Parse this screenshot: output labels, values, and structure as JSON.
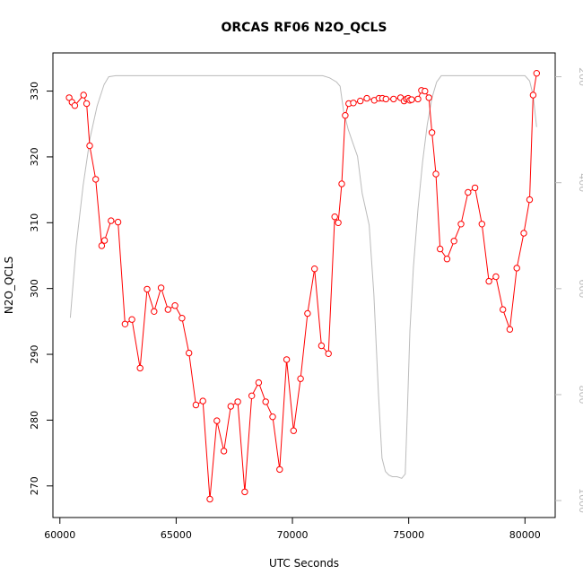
{
  "chart_data": {
    "type": "line",
    "title": "ORCAS RF06 N2O_QCLS",
    "xlabel": "UTC Seconds",
    "ylabel": "N2O_QCLS",
    "xlim": [
      59700,
      81300
    ],
    "ylim": [
      265.2,
      335.8
    ],
    "y2lim": [
      1032,
      155
    ],
    "x_ticks": [
      60000,
      65000,
      70000,
      75000,
      80000
    ],
    "x_tick_labels": [
      "60000",
      "65000",
      "70000",
      "75000",
      "80000"
    ],
    "y_ticks": [
      270,
      280,
      290,
      300,
      310,
      320,
      330
    ],
    "y_tick_labels": [
      "270",
      "280",
      "290",
      "300",
      "310",
      "320",
      "330"
    ],
    "y2_ticks": [
      200,
      400,
      600,
      800,
      1000
    ],
    "y2_tick_labels": [
      "200",
      "400",
      "600",
      "800",
      "1000"
    ],
    "grid": false,
    "legend": "none",
    "colors": {
      "n2o": "#ff0000",
      "pressure": "#bbbbbb",
      "axis": "#000000"
    },
    "series": [
      {
        "role": "n2o",
        "x": [
          60400,
          60520,
          60640,
          61020,
          61150,
          61280,
          61540,
          61800,
          61920,
          62200,
          62500,
          62800,
          63100,
          63450,
          63750,
          64050,
          64350,
          64650,
          64950,
          65250,
          65550,
          65850,
          66150,
          66450,
          66750,
          67050,
          67350,
          67650,
          67950,
          68250,
          68550,
          68850,
          69150,
          69450,
          69750,
          70050,
          70350,
          70650,
          70950,
          71250,
          71550,
          71820,
          71970,
          72120,
          72270,
          72420,
          72620,
          72920,
          73200,
          73520,
          73720,
          73870,
          74020,
          74350,
          74650,
          74800,
          74900,
          74980,
          75050,
          75130,
          75400,
          75550,
          75700,
          75870,
          76000,
          76170,
          76350,
          76650,
          76950,
          77250,
          77550,
          77850,
          78150,
          78450,
          78750,
          79050,
          79350,
          79650,
          79950,
          80200,
          80350,
          80500
        ],
        "y": [
          329.0,
          328.3,
          327.8,
          329.4,
          328.1,
          321.7,
          316.6,
          306.5,
          307.3,
          310.3,
          310.1,
          294.6,
          295.3,
          287.9,
          299.9,
          296.5,
          300.1,
          296.8,
          297.4,
          295.5,
          290.2,
          282.3,
          282.9,
          268.0,
          279.9,
          275.3,
          282.1,
          282.8,
          269.1,
          283.7,
          285.7,
          282.8,
          280.5,
          272.5,
          289.2,
          278.4,
          286.3,
          296.2,
          303.0,
          291.3,
          290.1,
          310.9,
          310.0,
          315.9,
          326.3,
          328.1,
          328.2,
          328.5,
          328.9,
          328.6,
          328.9,
          328.9,
          328.8,
          328.8,
          329.0,
          328.5,
          328.8,
          328.9,
          328.6,
          328.7,
          328.8,
          330.1,
          330.0,
          329.0,
          323.7,
          317.4,
          306.0,
          304.5,
          307.2,
          309.8,
          314.6,
          315.3,
          309.8,
          301.1,
          301.8,
          296.8,
          293.8,
          303.1,
          308.4,
          313.5,
          329.4,
          332.7
        ]
      },
      {
        "role": "pressure",
        "x": [
          60450,
          60700,
          61000,
          61300,
          61600,
          61900,
          62100,
          62400,
          63000,
          65000,
          67000,
          69000,
          70500,
          71000,
          71300,
          71600,
          71900,
          72050,
          72200,
          72400,
          72600,
          72800,
          73000,
          73300,
          73500,
          73700,
          73850,
          74000,
          74150,
          74300,
          74500,
          74700,
          74850,
          74950,
          75050,
          75200,
          75400,
          75600,
          75800,
          76000,
          76200,
          76400,
          76600,
          77000,
          78000,
          79000,
          79800,
          80000,
          80200,
          80350,
          80500
        ],
        "y": [
          655,
          520,
          405,
          315,
          255,
          215,
          200,
          198,
          198,
          198,
          198,
          198,
          198,
          198,
          198,
          202,
          210,
          218,
          265,
          300,
          325,
          350,
          420,
          480,
          610,
          800,
          920,
          945,
          952,
          955,
          955,
          958,
          950,
          820,
          680,
          560,
          450,
          360,
          290,
          240,
          210,
          198,
          198,
          198,
          198,
          198,
          198,
          198,
          208,
          235,
          295
        ]
      }
    ]
  }
}
